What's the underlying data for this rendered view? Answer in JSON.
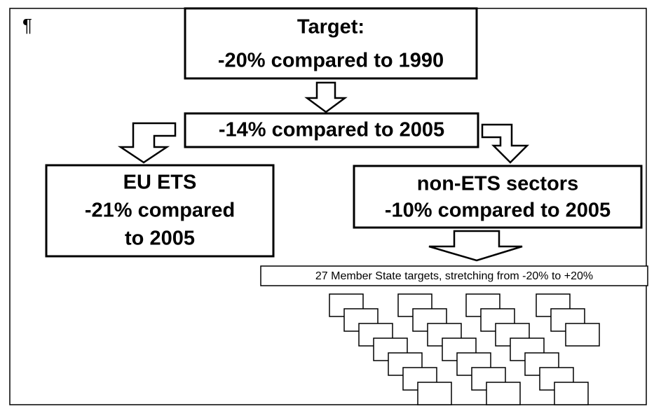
{
  "pilcrow": "¶",
  "target": {
    "title": "Target:",
    "text": "-20% compared to 1990"
  },
  "middle": {
    "text": "-14% compared to 2005"
  },
  "eu_ets": {
    "lines": [
      "EU ETS",
      "-21% compared",
      "to 2005"
    ]
  },
  "non_ets": {
    "lines": [
      "non-ETS sectors",
      "-10% compared to 2005"
    ]
  },
  "member_states": {
    "text": "27 Member State targets, stretching from -20% to +20%"
  }
}
